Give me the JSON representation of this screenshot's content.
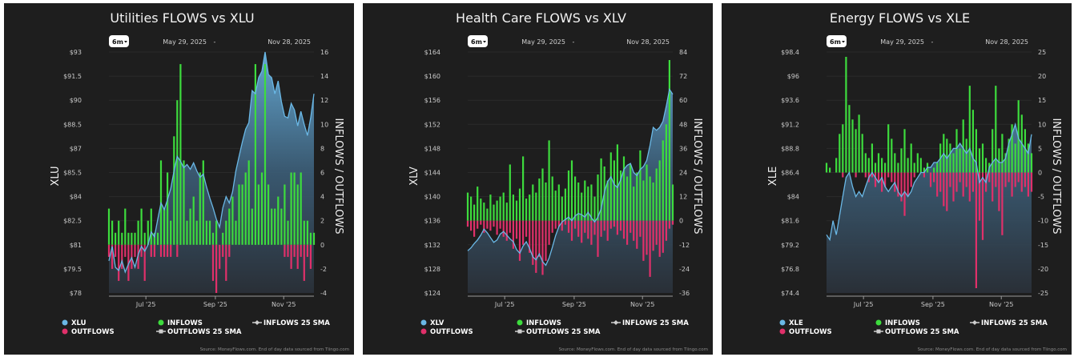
{
  "colors": {
    "price": "#6ab8e6",
    "inflows": "#3ddc3d",
    "outflows": "#e0306a",
    "background": "#1e1e1e"
  },
  "chart_data": [
    {
      "type": "bar+area",
      "title": "Utilities FLOWS vs XLU",
      "period_button": "6m",
      "date_from": "May 29, 2025",
      "date_sep": "-",
      "date_to": "Nov 28, 2025",
      "x_range": [
        "2025-05-29",
        "2025-11-28"
      ],
      "x_ticks": [
        {
          "label": "Jul '25",
          "date": "2025-07-01"
        },
        {
          "label": "Sep '25",
          "date": "2025-09-01"
        },
        {
          "label": "Nov '25",
          "date": "2025-11-01"
        }
      ],
      "ylabel_left": "XLU",
      "ylabel_right": "INFLOWS / OUTFLOWS",
      "ylim_left": [
        78,
        93
      ],
      "ylim_right": [
        -4,
        16
      ],
      "left_ticks": [
        "$93",
        "$91.5",
        "$90",
        "$88.5",
        "$87",
        "$85.5",
        "$84",
        "$82.5",
        "$81",
        "$79.5",
        "$78"
      ],
      "right_ticks": [
        "16",
        "14",
        "12",
        "10",
        "8",
        "6",
        "4",
        "2",
        "0",
        "-2",
        "-4"
      ],
      "grid": true,
      "legend": [
        "XLU",
        "OUTFLOWS",
        "INFLOWS",
        "OUTFLOWS 25 SMA",
        "INFLOWS 25 SMA"
      ],
      "legend_position": "bottom",
      "source": "Source: MoneyFlows.com. End of day data sourced from Tiingo.com",
      "price": [
        80.0,
        80.9,
        79.6,
        79.4,
        80.0,
        79.3,
        79.8,
        80.2,
        79.6,
        80.4,
        80.9,
        80.6,
        81.0,
        81.8,
        81.5,
        82.6,
        83.6,
        83.2,
        83.8,
        84.5,
        85.6,
        86.5,
        86.2,
        85.8,
        86.0,
        85.7,
        86.1,
        85.6,
        85.2,
        85.4,
        84.6,
        83.9,
        83.3,
        82.6,
        82.1,
        83.3,
        84.0,
        83.6,
        84.3,
        85.6,
        86.5,
        87.4,
        88.2,
        88.6,
        90.6,
        90.4,
        91.4,
        91.8,
        93.0,
        91.6,
        91.4,
        90.4,
        91.2,
        89.9,
        89.0,
        88.9,
        89.8,
        89.4,
        88.4,
        89.3,
        88.5,
        87.8,
        88.9,
        90.4
      ],
      "inflows": [
        3,
        2,
        1,
        2,
        1,
        3,
        1,
        1,
        1,
        2,
        3,
        1,
        2,
        3,
        1,
        1,
        7,
        3,
        6,
        2,
        9,
        12,
        15,
        7,
        2,
        3,
        4,
        2,
        6,
        7,
        2,
        2,
        1,
        2,
        0,
        1,
        2,
        3,
        4,
        2,
        5,
        5,
        6,
        7,
        3,
        15,
        5,
        6,
        15,
        5,
        3,
        3,
        4,
        3,
        5,
        2,
        6,
        6,
        5,
        6,
        2,
        2,
        1,
        1
      ],
      "outflows": [
        -1,
        -2,
        -1,
        -3,
        -2,
        -1,
        -3,
        -2,
        -1,
        -2,
        -1,
        -3,
        0,
        -1,
        -1,
        0,
        -1,
        -1,
        -1,
        -1,
        0,
        -1,
        0,
        0,
        0,
        0,
        0,
        0,
        0,
        0,
        0,
        0,
        -3,
        -4,
        -2,
        -1,
        -3,
        -1,
        0,
        0,
        0,
        0,
        0,
        0,
        0,
        0,
        0,
        0,
        0,
        0,
        0,
        0,
        0,
        0,
        -1,
        -1,
        -2,
        -1,
        -2,
        -1,
        -3,
        -1,
        -2,
        0
      ]
    },
    {
      "type": "bar+area",
      "title": "Health Care FLOWS vs XLV",
      "period_button": "6m",
      "date_from": "May 29, 2025",
      "date_sep": "-",
      "date_to": "Nov 28, 2025",
      "x_range": [
        "2025-05-29",
        "2025-11-28"
      ],
      "x_ticks": [
        {
          "label": "Jul '25",
          "date": "2025-07-01"
        },
        {
          "label": "Sep '25",
          "date": "2025-09-01"
        },
        {
          "label": "Nov '25",
          "date": "2025-11-01"
        }
      ],
      "ylabel_left": "XLV",
      "ylabel_right": "INFLOWS / OUTFLOWS",
      "ylim_left": [
        124,
        164
      ],
      "ylim_right": [
        -36,
        84
      ],
      "left_ticks": [
        "$164",
        "$160",
        "$156",
        "$152",
        "$148",
        "$144",
        "$140",
        "$136",
        "$132",
        "$128",
        "$124"
      ],
      "right_ticks": [
        "84",
        "72",
        "60",
        "48",
        "36",
        "24",
        "12",
        "0",
        "-12",
        "-24",
        "-36"
      ],
      "grid": true,
      "legend": [
        "XLV",
        "OUTFLOWS",
        "INFLOWS",
        "OUTFLOWS 25 SMA",
        "INFLOWS 25 SMA"
      ],
      "legend_position": "bottom",
      "source": "Source: MoneyFlows.com. End of day data sourced from Tiingo.com",
      "price": [
        131.0,
        131.5,
        132.2,
        132.8,
        133.6,
        134.6,
        134.0,
        133.2,
        132.4,
        132.8,
        133.8,
        134.2,
        133.6,
        133.0,
        132.5,
        131.2,
        130.6,
        131.8,
        132.5,
        131.4,
        130.0,
        129.5,
        130.5,
        129.2,
        128.6,
        129.8,
        131.6,
        133.5,
        135.0,
        135.8,
        136.2,
        136.6,
        136.0,
        136.8,
        137.2,
        137.0,
        136.6,
        137.4,
        136.5,
        135.8,
        136.6,
        138.0,
        140.8,
        142.5,
        143.3,
        142.0,
        141.5,
        142.8,
        144.5,
        145.2,
        145.5,
        144.0,
        143.5,
        144.5,
        145.0,
        146.0,
        148.5,
        151.5,
        151.0,
        151.5,
        152.5,
        155.0,
        157.8,
        157.0
      ],
      "inflows": [
        14,
        12,
        8,
        17,
        11,
        9,
        6,
        13,
        8,
        10,
        12,
        14,
        9,
        28,
        13,
        10,
        16,
        32,
        11,
        13,
        18,
        14,
        21,
        26,
        19,
        40,
        22,
        15,
        18,
        12,
        16,
        25,
        30,
        22,
        19,
        14,
        20,
        17,
        18,
        12,
        23,
        31,
        27,
        20,
        34,
        30,
        38,
        25,
        32,
        22,
        28,
        17,
        24,
        35,
        20,
        28,
        22,
        19,
        26,
        30,
        40,
        48,
        80,
        18
      ],
      "outflows": [
        -3,
        -5,
        -8,
        -4,
        -2,
        -6,
        -4,
        -5,
        -3,
        -7,
        -4,
        -8,
        -10,
        -6,
        -14,
        -9,
        -20,
        -12,
        -8,
        -16,
        -22,
        -26,
        -18,
        -27,
        -20,
        -12,
        -6,
        -4,
        -3,
        -5,
        -2,
        -6,
        -10,
        -4,
        -8,
        -11,
        -6,
        -9,
        -12,
        -7,
        -18,
        -8,
        -5,
        -10,
        -4,
        -3,
        -7,
        -5,
        -9,
        -12,
        -6,
        -10,
        -14,
        -8,
        -20,
        -17,
        -28,
        -15,
        -12,
        -18,
        -16,
        -10,
        -4,
        -2
      ]
    },
    {
      "type": "bar+area",
      "title": "Energy FLOWS vs XLE",
      "period_button": "6m",
      "date_from": "May 29, 2025",
      "date_sep": "-",
      "date_to": "Nov 28, 2025",
      "x_range": [
        "2025-05-29",
        "2025-11-28"
      ],
      "x_ticks": [
        {
          "label": "Jul '25",
          "date": "2025-07-01"
        },
        {
          "label": "Sep '25",
          "date": "2025-09-01"
        },
        {
          "label": "Nov '25",
          "date": "2025-11-01"
        }
      ],
      "ylabel_left": "XLE",
      "ylabel_right": "INFLOWS / OUTFLOWS",
      "ylim_left": [
        74.4,
        98.4
      ],
      "ylim_right": [
        -25,
        25
      ],
      "left_ticks": [
        "$98.4",
        "$96",
        "$93.6",
        "$91.2",
        "$88.8",
        "$86.4",
        "$84",
        "$81.6",
        "$79.2",
        "$76.8",
        "$74.4"
      ],
      "right_ticks": [
        "25",
        "20",
        "15",
        "10",
        "5",
        "0",
        "-5",
        "-10",
        "-15",
        "-20",
        "-25"
      ],
      "grid": true,
      "legend": [
        "XLE",
        "OUTFLOWS",
        "INFLOWS",
        "OUTFLOWS 25 SMA",
        "INFLOWS 25 SMA"
      ],
      "legend_position": "bottom",
      "source": "Source: MoneyFlows.com. End of day data sourced from Tiingo.com",
      "price": [
        80.2,
        79.7,
        81.6,
        80.2,
        82.1,
        84.0,
        85.9,
        86.4,
        85.0,
        84.0,
        84.5,
        84.0,
        85.0,
        85.9,
        86.4,
        85.9,
        85.4,
        85.9,
        85.0,
        84.5,
        85.0,
        85.4,
        84.5,
        84.0,
        84.5,
        84.0,
        84.5,
        85.4,
        85.9,
        86.4,
        86.4,
        86.9,
        86.9,
        87.4,
        87.4,
        87.8,
        88.3,
        87.8,
        88.3,
        88.8,
        88.8,
        89.3,
        88.8,
        88.3,
        88.8,
        87.8,
        87.4,
        85.4,
        85.9,
        85.4,
        86.9,
        87.4,
        87.8,
        87.4,
        87.4,
        87.8,
        89.3,
        90.2,
        91.2,
        89.8,
        89.3,
        88.8,
        88.3,
        90.2
      ],
      "inflows": [
        2,
        1,
        0,
        3,
        8,
        10,
        24,
        14,
        11,
        9,
        12,
        8,
        4,
        3,
        6,
        2,
        4,
        3,
        2,
        10,
        7,
        4,
        2,
        5,
        9,
        3,
        6,
        2,
        4,
        3,
        1,
        2,
        0,
        1,
        2,
        6,
        8,
        7,
        6,
        4,
        9,
        5,
        11,
        7,
        18,
        13,
        9,
        5,
        6,
        3,
        2,
        9,
        18,
        5,
        8,
        4,
        7,
        10,
        6,
        15,
        12,
        9,
        6,
        4
      ],
      "outflows": [
        0,
        0,
        0,
        0,
        0,
        -1,
        0,
        0,
        0,
        -1,
        0,
        0,
        -1,
        -2,
        -1,
        -3,
        -2,
        -4,
        -3,
        -1,
        -2,
        -4,
        -5,
        -6,
        -9,
        -5,
        -3,
        -1,
        0,
        0,
        -1,
        0,
        -3,
        -2,
        -5,
        -4,
        -7,
        -8,
        -3,
        -6,
        -4,
        -2,
        -5,
        -3,
        -6,
        -4,
        -24,
        -10,
        -14,
        -4,
        -2,
        -6,
        -3,
        -8,
        -13,
        -3,
        -2,
        -5,
        -3,
        -2,
        -4,
        -3,
        -5,
        -4
      ]
    }
  ]
}
